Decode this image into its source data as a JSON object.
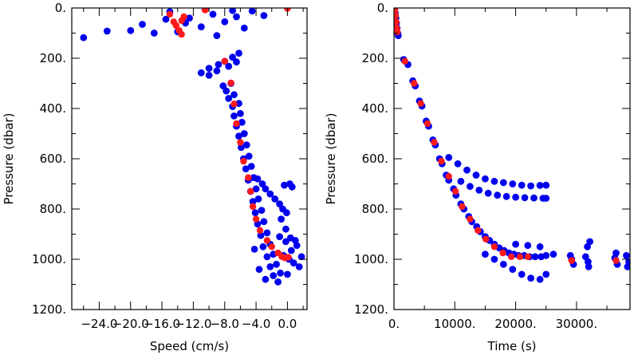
{
  "chart_data": [
    {
      "type": "scatter",
      "xlabel": "Speed (cm/s)",
      "ylabel": "Pressure (dbar)",
      "xlim": [
        -27.5,
        2.5
      ],
      "ylim": [
        1200,
        0
      ],
      "x_ticks": [
        -24.0,
        -20.0,
        -16.0,
        -12.0,
        -8.0,
        -4.0,
        0.0
      ],
      "x_tick_labels": [
        "−24.0",
        "−20.0",
        "−16.0",
        "−12.0",
        "−8.0",
        "−4.0",
        "0.0"
      ],
      "y_ticks": [
        0,
        200,
        400,
        600,
        800,
        1000,
        1200
      ],
      "y_tick_labels": [
        "0.",
        "200.",
        "400.",
        "600.",
        "800.",
        "1000.",
        "1200."
      ],
      "grid": false,
      "colors": {
        "raw": "#0000ee",
        "binned": "#ff1a1a"
      },
      "series": [
        {
          "color": "#0000ee",
          "points": [
            [
              -26.0,
              118
            ],
            [
              -23.0,
              92
            ],
            [
              -20.0,
              90
            ],
            [
              -18.5,
              65
            ],
            [
              -17.0,
              100
            ],
            [
              -15.5,
              45
            ],
            [
              -14.0,
              95
            ],
            [
              -12.5,
              40
            ],
            [
              -11.0,
              75
            ],
            [
              -9.5,
              25
            ],
            [
              -8.0,
              55
            ],
            [
              -6.5,
              35
            ],
            [
              -5.5,
              80
            ],
            [
              -4.5,
              12
            ],
            [
              -3.0,
              30
            ],
            [
              -15.0,
              15
            ],
            [
              -13.0,
              60
            ],
            [
              -10.5,
              5
            ],
            [
              -9.0,
              110
            ],
            [
              -7.0,
              10
            ],
            [
              -11.0,
              258
            ],
            [
              -10.0,
              240
            ],
            [
              -8.8,
              225
            ],
            [
              -8.0,
              212
            ],
            [
              -7.0,
              196
            ],
            [
              -6.2,
              180
            ],
            [
              -10.0,
              268
            ],
            [
              -9.0,
              250
            ],
            [
              -7.5,
              232
            ],
            [
              -6.5,
              215
            ],
            [
              -8.2,
              310
            ],
            [
              -7.8,
              330
            ],
            [
              -7.2,
              300
            ],
            [
              -7.5,
              360
            ],
            [
              -6.8,
              345
            ],
            [
              -7.0,
              392
            ],
            [
              -6.2,
              380
            ],
            [
              -6.8,
              430
            ],
            [
              -6.0,
              420
            ],
            [
              -6.5,
              470
            ],
            [
              -5.8,
              455
            ],
            [
              -6.2,
              510
            ],
            [
              -5.5,
              500
            ],
            [
              -5.9,
              555
            ],
            [
              -5.2,
              545
            ],
            [
              -5.6,
              600
            ],
            [
              -4.9,
              590
            ],
            [
              -5.3,
              640
            ],
            [
              -4.6,
              630
            ],
            [
              -5.0,
              685
            ],
            [
              -4.3,
              675
            ],
            [
              -4.7,
              730
            ],
            [
              -4.0,
              720
            ],
            [
              -4.4,
              770
            ],
            [
              -3.7,
              760
            ],
            [
              -4.1,
              815
            ],
            [
              -3.3,
              805
            ],
            [
              -3.8,
              860
            ],
            [
              -3.0,
              850
            ],
            [
              -3.4,
              905
            ],
            [
              -2.6,
              895
            ],
            [
              -3.1,
              950
            ],
            [
              -2.2,
              940
            ],
            [
              -2.6,
              990
            ],
            [
              -1.8,
              980
            ],
            [
              -2.2,
              1030
            ],
            [
              -1.4,
              1020
            ],
            [
              -1.8,
              1065
            ],
            [
              -0.9,
              1055
            ],
            [
              -2.8,
              1080
            ],
            [
              -1.2,
              1090
            ],
            [
              -3.6,
              1040
            ],
            [
              -4.2,
              960
            ],
            [
              -0.5,
              985
            ],
            [
              0.2,
              1000
            ],
            [
              0.8,
              1015
            ],
            [
              1.5,
              1030
            ],
            [
              0.5,
              965
            ],
            [
              1.2,
              945
            ],
            [
              -0.2,
              930
            ],
            [
              -1.0,
              910
            ],
            [
              0.0,
              1060
            ],
            [
              1.8,
              990
            ],
            [
              -3.8,
              680
            ],
            [
              -3.2,
              700
            ],
            [
              -2.8,
              720
            ],
            [
              -2.2,
              740
            ],
            [
              -1.6,
              760
            ],
            [
              -1.0,
              780
            ],
            [
              -0.6,
              800
            ],
            [
              -0.1,
              815
            ],
            [
              -0.4,
              705
            ],
            [
              0.3,
              700
            ],
            [
              0.6,
              712
            ],
            [
              -0.8,
              840
            ],
            [
              -0.2,
              880
            ],
            [
              0.4,
              915
            ],
            [
              1.0,
              925
            ]
          ]
        },
        {
          "color": "#ff1a1a",
          "points": [
            [
              -15.0,
              25
            ],
            [
              -14.5,
              55
            ],
            [
              -13.5,
              50
            ],
            [
              -13.2,
              35
            ],
            [
              -14.2,
              70
            ],
            [
              -13.8,
              90
            ],
            [
              -13.5,
              105
            ],
            [
              -10.5,
              8
            ],
            [
              0.0,
              2
            ],
            [
              -8.0,
              212
            ],
            [
              -7.2,
              298
            ],
            [
              -6.8,
              382
            ],
            [
              -6.5,
              460
            ],
            [
              -6.0,
              535
            ],
            [
              -5.6,
              610
            ],
            [
              -5.0,
              675
            ],
            [
              -4.7,
              730
            ],
            [
              -4.4,
              790
            ],
            [
              -4.0,
              840
            ],
            [
              -3.5,
              885
            ],
            [
              -2.6,
              925
            ],
            [
              -2.0,
              950
            ],
            [
              -1.2,
              975
            ],
            [
              -0.7,
              990
            ],
            [
              -0.3,
              995
            ],
            [
              0.1,
              992
            ]
          ]
        }
      ]
    },
    {
      "type": "scatter",
      "xlabel": "Time (s)",
      "ylabel": "Pressure (dbar)",
      "xlim": [
        0,
        38800
      ],
      "ylim": [
        1200,
        0
      ],
      "x_ticks": [
        0,
        10000,
        20000,
        30000
      ],
      "x_tick_labels": [
        "0.",
        "10000.",
        "20000.",
        "30000."
      ],
      "y_ticks": [
        0,
        200,
        400,
        600,
        800,
        1000,
        1200
      ],
      "y_tick_labels": [
        "0.",
        "200.",
        "400.",
        "600.",
        "800.",
        "1000.",
        "1200."
      ],
      "grid": false,
      "colors": {
        "raw": "#0000ee",
        "binned": "#ff1a1a"
      },
      "series": [
        {
          "color": "#0000ee",
          "points": [
            [
              100,
              5
            ],
            [
              200,
              20
            ],
            [
              300,
              40
            ],
            [
              400,
              60
            ],
            [
              500,
              80
            ],
            [
              600,
              100
            ],
            [
              700,
              110
            ],
            [
              1600,
              205
            ],
            [
              2300,
              225
            ],
            [
              3100,
              290
            ],
            [
              3500,
              310
            ],
            [
              4200,
              370
            ],
            [
              4600,
              390
            ],
            [
              5300,
              450
            ],
            [
              5700,
              470
            ],
            [
              6400,
              525
            ],
            [
              6800,
              545
            ],
            [
              7500,
              600
            ],
            [
              7900,
              620
            ],
            [
              8600,
              665
            ],
            [
              9000,
              685
            ],
            [
              9800,
              720
            ],
            [
              10200,
              745
            ],
            [
              11000,
              780
            ],
            [
              11500,
              800
            ],
            [
              12300,
              830
            ],
            [
              12800,
              850
            ],
            [
              13600,
              870
            ],
            [
              14200,
              890
            ],
            [
              15000,
              910
            ],
            [
              15700,
              925
            ],
            [
              16500,
              940
            ],
            [
              17300,
              955
            ],
            [
              18100,
              965
            ],
            [
              18900,
              975
            ],
            [
              19700,
              980
            ],
            [
              20500,
              985
            ],
            [
              21400,
              985
            ],
            [
              22300,
              990
            ],
            [
              23200,
              990
            ],
            [
              24200,
              990
            ],
            [
              25000,
              985
            ],
            [
              15000,
              980
            ],
            [
              16500,
              1000
            ],
            [
              18000,
              1020
            ],
            [
              19500,
              1040
            ],
            [
              21000,
              1060
            ],
            [
              22500,
              1075
            ],
            [
              24000,
              1080
            ],
            [
              25000,
              1060
            ],
            [
              20000,
              940
            ],
            [
              22000,
              945
            ],
            [
              24000,
              950
            ],
            [
              9000,
              595
            ],
            [
              10500,
              620
            ],
            [
              12000,
              645
            ],
            [
              13500,
              665
            ],
            [
              15000,
              680
            ],
            [
              16500,
              690
            ],
            [
              18000,
              695
            ],
            [
              19500,
              700
            ],
            [
              21000,
              705
            ],
            [
              22500,
              708
            ],
            [
              24000,
              706
            ],
            [
              25000,
              705
            ],
            [
              11000,
              690
            ],
            [
              12500,
              710
            ],
            [
              14000,
              725
            ],
            [
              15500,
              737
            ],
            [
              17000,
              745
            ],
            [
              18500,
              750
            ],
            [
              20000,
              753
            ],
            [
              21500,
              755
            ],
            [
              23000,
              756
            ],
            [
              24500,
              757
            ],
            [
              25000,
              757
            ],
            [
              26200,
              980
            ],
            [
              29200,
              1000
            ],
            [
              29500,
              1020
            ],
            [
              29000,
              985
            ],
            [
              31500,
              990
            ],
            [
              32000,
              1030
            ],
            [
              31800,
              950
            ],
            [
              32200,
              930
            ],
            [
              31900,
              1010
            ],
            [
              36300,
              995
            ],
            [
              36700,
              1020
            ],
            [
              36500,
              975
            ],
            [
              38200,
              985
            ],
            [
              38600,
              1010
            ],
            [
              38400,
              1030
            ]
          ]
        },
        {
          "color": "#ff1a1a",
          "points": [
            [
              150,
              10
            ],
            [
              250,
              30
            ],
            [
              350,
              55
            ],
            [
              450,
              80
            ],
            [
              550,
              95
            ],
            [
              1800,
              212
            ],
            [
              3300,
              300
            ],
            [
              4400,
              380
            ],
            [
              5500,
              460
            ],
            [
              6600,
              535
            ],
            [
              7800,
              610
            ],
            [
              9000,
              670
            ],
            [
              10100,
              730
            ],
            [
              11200,
              790
            ],
            [
              12500,
              840
            ],
            [
              13800,
              885
            ],
            [
              15100,
              920
            ],
            [
              16500,
              950
            ],
            [
              17900,
              975
            ],
            [
              19300,
              990
            ],
            [
              20700,
              990
            ],
            [
              22000,
              990
            ],
            [
              29200,
              1005
            ],
            [
              36500,
              1005
            ]
          ]
        }
      ]
    }
  ]
}
